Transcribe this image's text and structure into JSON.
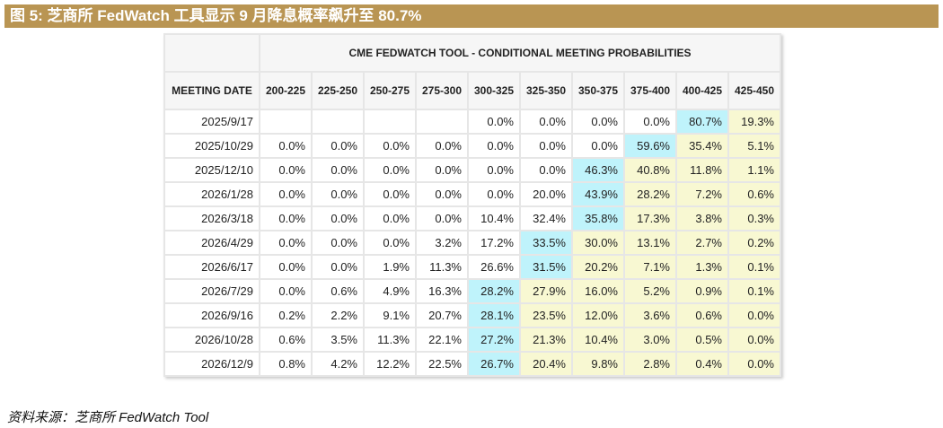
{
  "title": "图 5:  芝商所 FedWatch 工具显示 9 月降息概率飙升至 80.7%",
  "table": {
    "caption": "CME FEDWATCH TOOL - CONDITIONAL MEETING PROBABILITIES",
    "date_header": "MEETING DATE",
    "columns": [
      "200-225",
      "225-250",
      "250-275",
      "275-300",
      "300-325",
      "325-350",
      "350-375",
      "375-400",
      "400-425",
      "425-450"
    ],
    "rows": [
      {
        "date": "2025/9/17",
        "max_col": 8,
        "values": [
          "",
          "",
          "",
          "",
          "0.0%",
          "0.0%",
          "0.0%",
          "0.0%",
          "80.7%",
          "19.3%"
        ]
      },
      {
        "date": "2025/10/29",
        "max_col": 7,
        "values": [
          "0.0%",
          "0.0%",
          "0.0%",
          "0.0%",
          "0.0%",
          "0.0%",
          "0.0%",
          "59.6%",
          "35.4%",
          "5.1%"
        ]
      },
      {
        "date": "2025/12/10",
        "max_col": 6,
        "values": [
          "0.0%",
          "0.0%",
          "0.0%",
          "0.0%",
          "0.0%",
          "0.0%",
          "46.3%",
          "40.8%",
          "11.8%",
          "1.1%"
        ]
      },
      {
        "date": "2026/1/28",
        "max_col": 6,
        "values": [
          "0.0%",
          "0.0%",
          "0.0%",
          "0.0%",
          "0.0%",
          "20.0%",
          "43.9%",
          "28.2%",
          "7.2%",
          "0.6%"
        ]
      },
      {
        "date": "2026/3/18",
        "max_col": 6,
        "values": [
          "0.0%",
          "0.0%",
          "0.0%",
          "0.0%",
          "10.4%",
          "32.4%",
          "35.8%",
          "17.3%",
          "3.8%",
          "0.3%"
        ]
      },
      {
        "date": "2026/4/29",
        "max_col": 5,
        "values": [
          "0.0%",
          "0.0%",
          "0.0%",
          "3.2%",
          "17.2%",
          "33.5%",
          "30.0%",
          "13.1%",
          "2.7%",
          "0.2%"
        ]
      },
      {
        "date": "2026/6/17",
        "max_col": 5,
        "values": [
          "0.0%",
          "0.0%",
          "1.9%",
          "11.3%",
          "26.6%",
          "31.5%",
          "20.2%",
          "7.1%",
          "1.3%",
          "0.1%"
        ]
      },
      {
        "date": "2026/7/29",
        "max_col": 4,
        "values": [
          "0.0%",
          "0.6%",
          "4.9%",
          "16.3%",
          "28.2%",
          "27.9%",
          "16.0%",
          "5.2%",
          "0.9%",
          "0.1%"
        ]
      },
      {
        "date": "2026/9/16",
        "max_col": 4,
        "values": [
          "0.2%",
          "2.2%",
          "9.1%",
          "20.7%",
          "28.1%",
          "23.5%",
          "12.0%",
          "3.6%",
          "0.6%",
          "0.0%"
        ]
      },
      {
        "date": "2026/10/28",
        "max_col": 4,
        "values": [
          "0.6%",
          "3.5%",
          "11.3%",
          "22.1%",
          "27.2%",
          "21.3%",
          "10.4%",
          "3.0%",
          "0.5%",
          "0.0%"
        ]
      },
      {
        "date": "2026/12/9",
        "max_col": 4,
        "values": [
          "0.8%",
          "4.2%",
          "12.2%",
          "22.5%",
          "26.7%",
          "20.4%",
          "9.8%",
          "2.8%",
          "0.4%",
          "0.0%"
        ]
      }
    ]
  },
  "source": "资料来源：芝商所 FedWatch Tool",
  "colors": {
    "title_bg": "#b99553",
    "max_cell": "#bff3fb",
    "above_max": "#f8f8d2"
  }
}
